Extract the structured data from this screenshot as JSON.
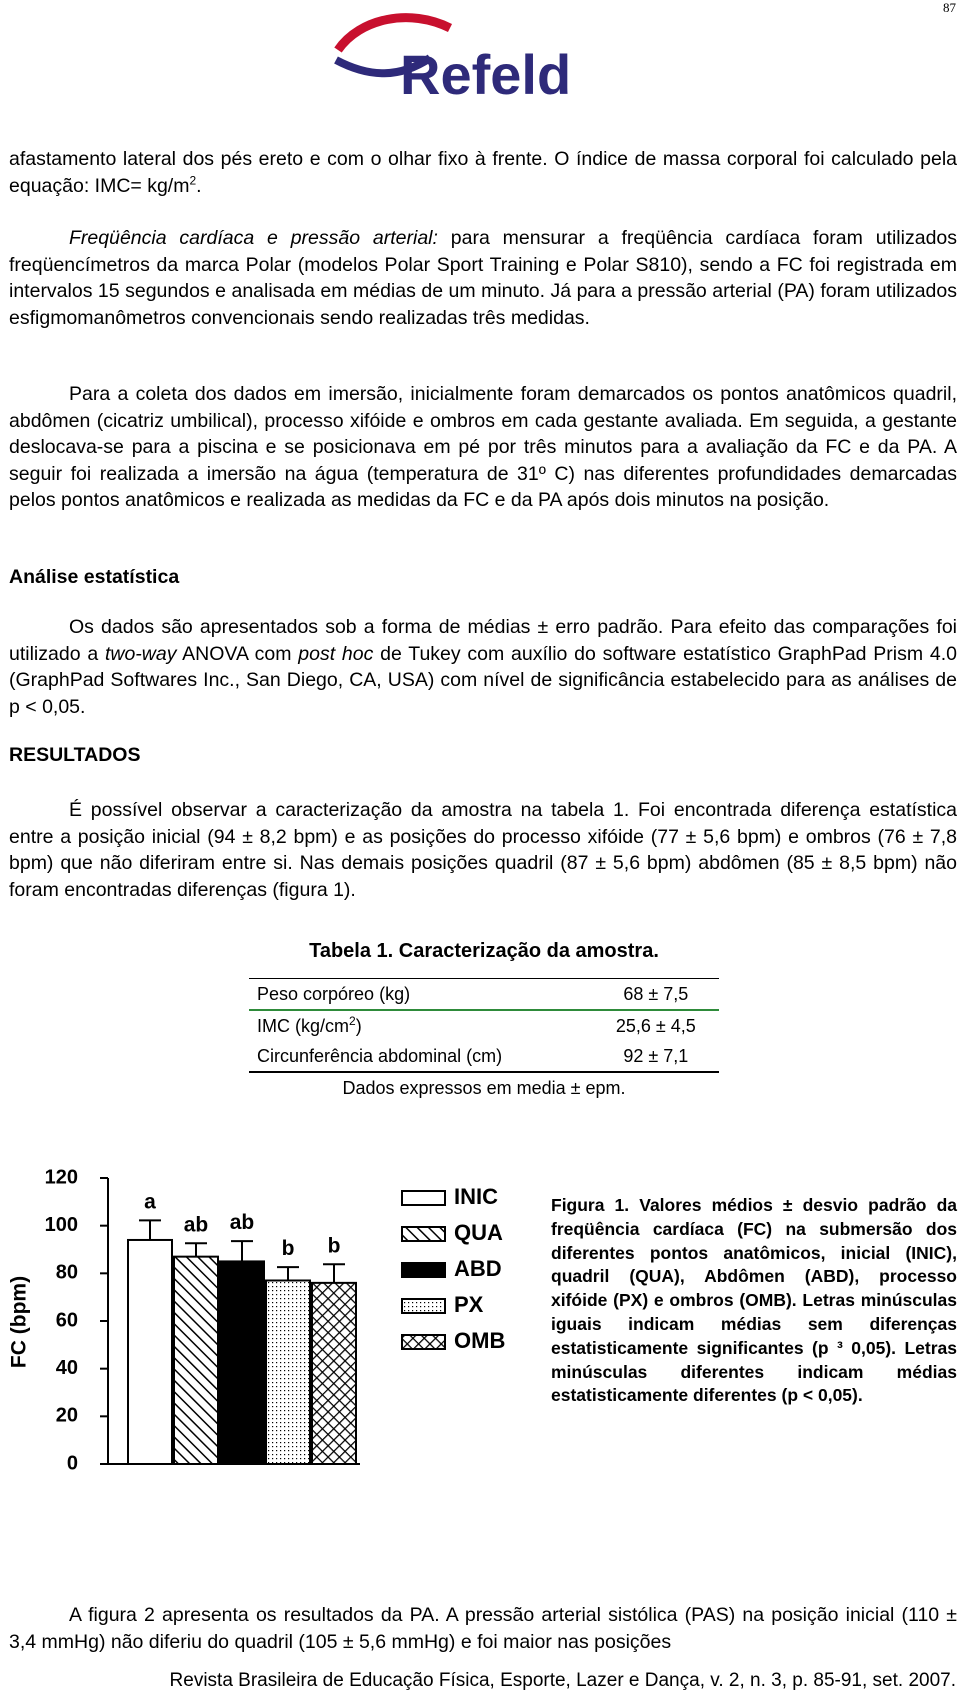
{
  "page_number": "87",
  "logo": "Refeld",
  "paragraphs": [
    [
      "afastamento lateral dos pés ereto e com o olhar fixo à frente. O índice de massa corporal foi calculado pela equação: IMC= kg/m",
      "2",
      "."
    ],
    [
      "Freqüência cardíaca e pressão arterial:",
      " para mensurar a freqüência cardíaca foram utilizados freqüencímetros da marca Polar (modelos Polar Sport Training e Polar S810), sendo a FC foi registrada em intervalos 15 segundos e analisada em médias de um minuto. Já para a pressão arterial (PA) foram utilizados esfigmomanômetros convencionais sendo realizadas três medidas."
    ],
    [
      "Para a coleta dos dados em imersão, inicialmente foram demarcados os pontos anatômicos quadril, abdômen (cicatriz umbilical), processo xifóide e ombros em cada gestante avaliada. Em seguida, a gestante deslocava-se para a piscina e se posicionava em pé por três minutos para a avaliação da FC e da PA. A seguir foi realizada a imersão na água (temperatura de 31º C) nas diferentes profundidades demarcadas pelos pontos anatômicos e realizada as medidas da FC e da PA após dois minutos na posição."
    ],
    [
      "Os dados são apresentados sob a forma de médias ± erro padrão. Para efeito das comparações foi utilizado a ",
      "two-way",
      " ANOVA com ",
      "post hoc",
      " de Tukey com auxílio do software estatístico GraphPad Prism 4.0 (GraphPad Softwares Inc., San Diego, CA, USA) com nível de significância estabelecido para as análises de p < 0,05."
    ],
    [
      "É possível observar a caracterização da amostra na tabela 1. Foi encontrada diferença estatística entre a posição inicial (94 ± 8,2 bpm) e as posições do processo xifóide (77 ± 5,6 bpm) e ombros (76 ± 7,8 bpm) que não diferiram entre si. Nas demais posições quadril (87 ± 5,6 bpm) abdômen (85 ± 8,5 bpm) não foram encontradas diferenças (figura 1)."
    ],
    [
      "A figura 2 apresenta os resultados da PA. A pressão arterial sistólica (PAS) na posição inicial (110 ± 3,4 mmHg) não diferiu do quadril (105 ± 5,6 mmHg) e foi maior nas posições"
    ]
  ],
  "headings": [
    "Análise estatística",
    "RESULTADOS"
  ],
  "table": {
    "title": "Tabela 1. Caracterização da amostra.",
    "rows": [
      [
        [
          "Peso corpóreo (kg)"
        ],
        "68 ± 7,5"
      ],
      [
        [
          "IMC (kg/cm",
          "2",
          ")"
        ],
        "25,6 ± 4,5"
      ],
      [
        [
          "Circunferência abdominal (cm)"
        ],
        "92 ± 7,1"
      ]
    ],
    "note": "Dados expressos em media ± epm."
  },
  "chart_data": {
    "type": "bar",
    "ylabel": "FC (bpm)",
    "categories": [
      "INIC",
      "QUA",
      "ABD",
      "PX",
      "OMB"
    ],
    "values": [
      94,
      87,
      85,
      77,
      76
    ],
    "errors": [
      8.2,
      5.6,
      8.5,
      5.6,
      7.8
    ],
    "annotations": [
      "a",
      "ab",
      "ab",
      "b",
      "b"
    ],
    "ylim": [
      0,
      120
    ],
    "yticks": [
      0,
      20,
      40,
      60,
      80,
      100,
      120
    ],
    "caption": "Figura 1. Valores médios ± desvio padrão da freqüência cardíaca (FC) na submersão dos diferentes pontos anatômicos, inicial (INIC), quadril (QUA), Abdômen (ABD), processo xifóide (PX) e ombros (OMB). Letras minúsculas iguais indicam médias sem diferenças estatisticamente significantes (p ³ 0,05). Letras minúsculas diferentes indicam médias estatisticamente diferentes (p < 0,05)."
  },
  "footer": "Revista Brasileira de Educação Física, Esporte, Lazer e Dança, v. 2, n. 3, p. 85-91, set. 2007."
}
